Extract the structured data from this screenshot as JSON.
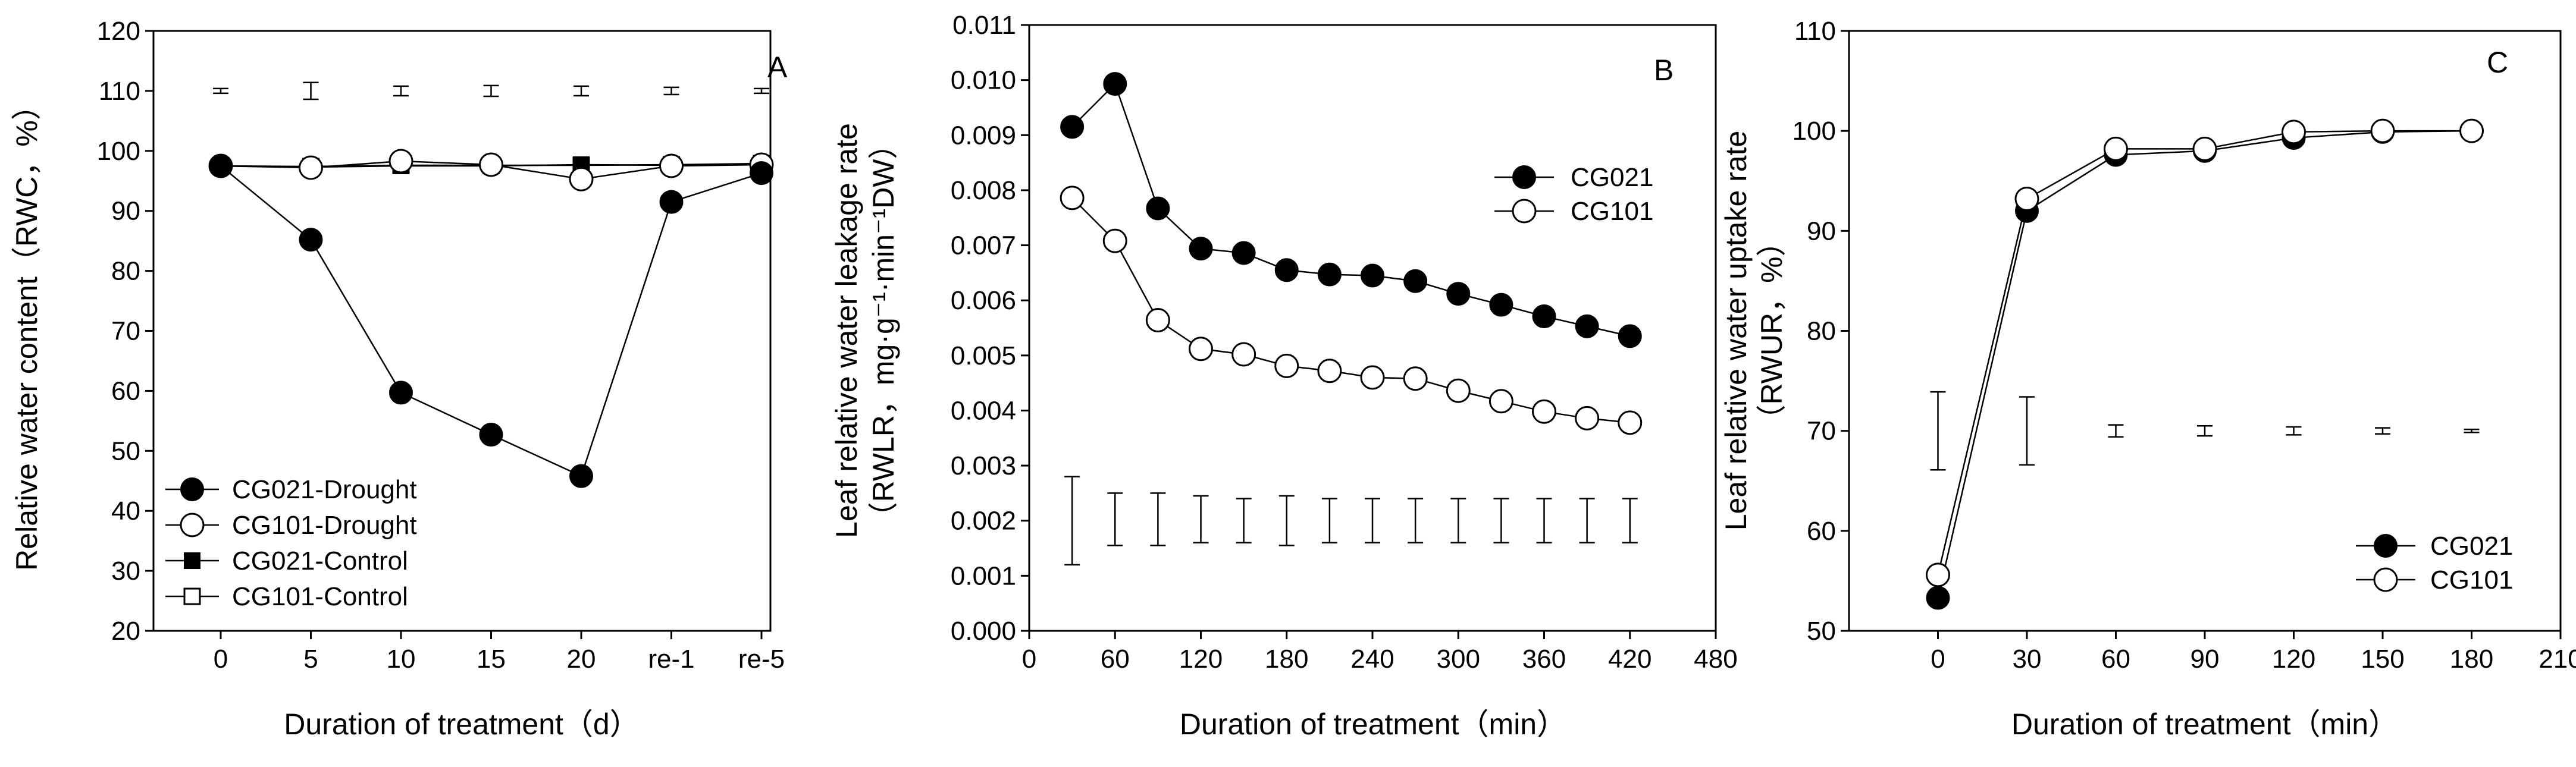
{
  "figure": {
    "panels": [
      {
        "letter": "A",
        "ylabel": "Relative water content（RWC，%）",
        "xlabel": "Duration of treatment（d）"
      },
      {
        "letter": "B",
        "ylabel_line1": "Leaf relative water leakage rate",
        "ylabel_line2": "（RWLR，mg·g⁻¹·min⁻¹DW）",
        "xlabel": "Duration of treatment（min）"
      },
      {
        "letter": "C",
        "ylabel_line1": "Leaf relative water uptake rate",
        "ylabel_line2": "（RWUR，%）",
        "xlabel": "Duration of treatment（min）"
      }
    ]
  },
  "chart_data": [
    {
      "panel": "A",
      "type": "line",
      "title": "",
      "xlabel": "Duration of treatment（d）",
      "ylabel": "Relative water content（RWC，%）",
      "categories": [
        "0",
        "5",
        "10",
        "15",
        "20",
        "re-1",
        "re-5"
      ],
      "ylim": [
        20,
        120
      ],
      "yticks": [
        "20",
        "30",
        "40",
        "50",
        "60",
        "70",
        "80",
        "90",
        "100",
        "110",
        "120"
      ],
      "legend_position": "bottom-left",
      "series": [
        {
          "name": "CG021-Drought",
          "marker": "filled-circle",
          "values": [
            97.5,
            85.2,
            59.7,
            52.7,
            45.8,
            91.5,
            96.3
          ]
        },
        {
          "name": "CG101-Drought",
          "marker": "open-circle",
          "values": [
            97.5,
            97.2,
            98.3,
            97.7,
            95.3,
            97.5,
            97.7
          ]
        },
        {
          "name": "CG021-Control",
          "marker": "filled-square",
          "values": [
            97.5,
            97.3,
            97.5,
            97.5,
            97.7,
            97.6,
            97.8
          ]
        },
        {
          "name": "CG101-Control",
          "marker": "open-square",
          "values": [
            97.5,
            97.4,
            97.6,
            97.6,
            97.6,
            97.7,
            97.9
          ]
        }
      ],
      "error_bars": {
        "center": 110,
        "half_widths": [
          0.4,
          1.4,
          0.8,
          0.9,
          0.8,
          0.6,
          0.4
        ]
      }
    },
    {
      "panel": "B",
      "type": "line",
      "title": "",
      "xlabel": "Duration of treatment（min）",
      "ylabel": "Leaf relative water leakage rate（RWLR，mg·g⁻¹·min⁻¹DW）",
      "xlim": [
        0,
        480
      ],
      "xticks": [
        "0",
        "60",
        "120",
        "180",
        "240",
        "300",
        "360",
        "420",
        "480"
      ],
      "ylim": [
        0,
        0.011
      ],
      "yticks": [
        "0.000",
        "0.001",
        "0.002",
        "0.003",
        "0.004",
        "0.005",
        "0.006",
        "0.007",
        "0.008",
        "0.009",
        "0.010",
        "0.011"
      ],
      "legend_position": "top-right",
      "x": [
        30,
        60,
        90,
        120,
        150,
        180,
        210,
        240,
        270,
        300,
        330,
        360,
        390,
        420
      ],
      "series": [
        {
          "name": "CG021",
          "marker": "filled-circle",
          "values": [
            0.00915,
            0.00993,
            0.00767,
            0.00694,
            0.00686,
            0.00655,
            0.00647,
            0.00645,
            0.00635,
            0.00612,
            0.00592,
            0.00571,
            0.00553,
            0.00535
          ]
        },
        {
          "name": "CG101",
          "marker": "open-circle",
          "values": [
            0.00786,
            0.00708,
            0.00564,
            0.00512,
            0.00502,
            0.00481,
            0.00472,
            0.0046,
            0.00458,
            0.00436,
            0.00417,
            0.00398,
            0.00386,
            0.00378
          ]
        }
      ],
      "error_bars": {
        "x": [
          30,
          60,
          90,
          120,
          150,
          180,
          210,
          240,
          270,
          300,
          330,
          360,
          390,
          420
        ],
        "low": [
          0.0012,
          0.00155,
          0.00155,
          0.0016,
          0.0016,
          0.00155,
          0.0016,
          0.0016,
          0.0016,
          0.0016,
          0.0016,
          0.0016,
          0.0016,
          0.0016
        ],
        "high": [
          0.0028,
          0.0025,
          0.0025,
          0.00245,
          0.0024,
          0.00245,
          0.0024,
          0.0024,
          0.0024,
          0.0024,
          0.0024,
          0.0024,
          0.0024,
          0.0024
        ]
      }
    },
    {
      "panel": "C",
      "type": "line",
      "title": "",
      "xlabel": "Duration of treatment（min）",
      "ylabel": "Leaf relative water uptake rate（RWUR，%）",
      "xlim": [
        -30,
        210
      ],
      "xticks": [
        "0",
        "30",
        "60",
        "90",
        "120",
        "150",
        "180",
        "210"
      ],
      "ylim": [
        50,
        110
      ],
      "yticks": [
        "50",
        "60",
        "70",
        "80",
        "90",
        "100",
        "110"
      ],
      "legend_position": "bottom-right",
      "x": [
        0,
        30,
        60,
        90,
        120,
        150,
        180
      ],
      "series": [
        {
          "name": "CG021",
          "marker": "filled-circle",
          "values": [
            53.3,
            92.0,
            97.6,
            98.0,
            99.3,
            99.9,
            100.0
          ]
        },
        {
          "name": "CG101",
          "marker": "open-circle",
          "values": [
            55.6,
            93.2,
            98.2,
            98.2,
            99.9,
            100.0,
            100.0
          ]
        }
      ],
      "error_bars": {
        "x": [
          0,
          30,
          60,
          90,
          120,
          150,
          180
        ],
        "center": 70,
        "half_widths": [
          3.9,
          3.4,
          0.6,
          0.5,
          0.4,
          0.3,
          0.1
        ]
      }
    }
  ]
}
